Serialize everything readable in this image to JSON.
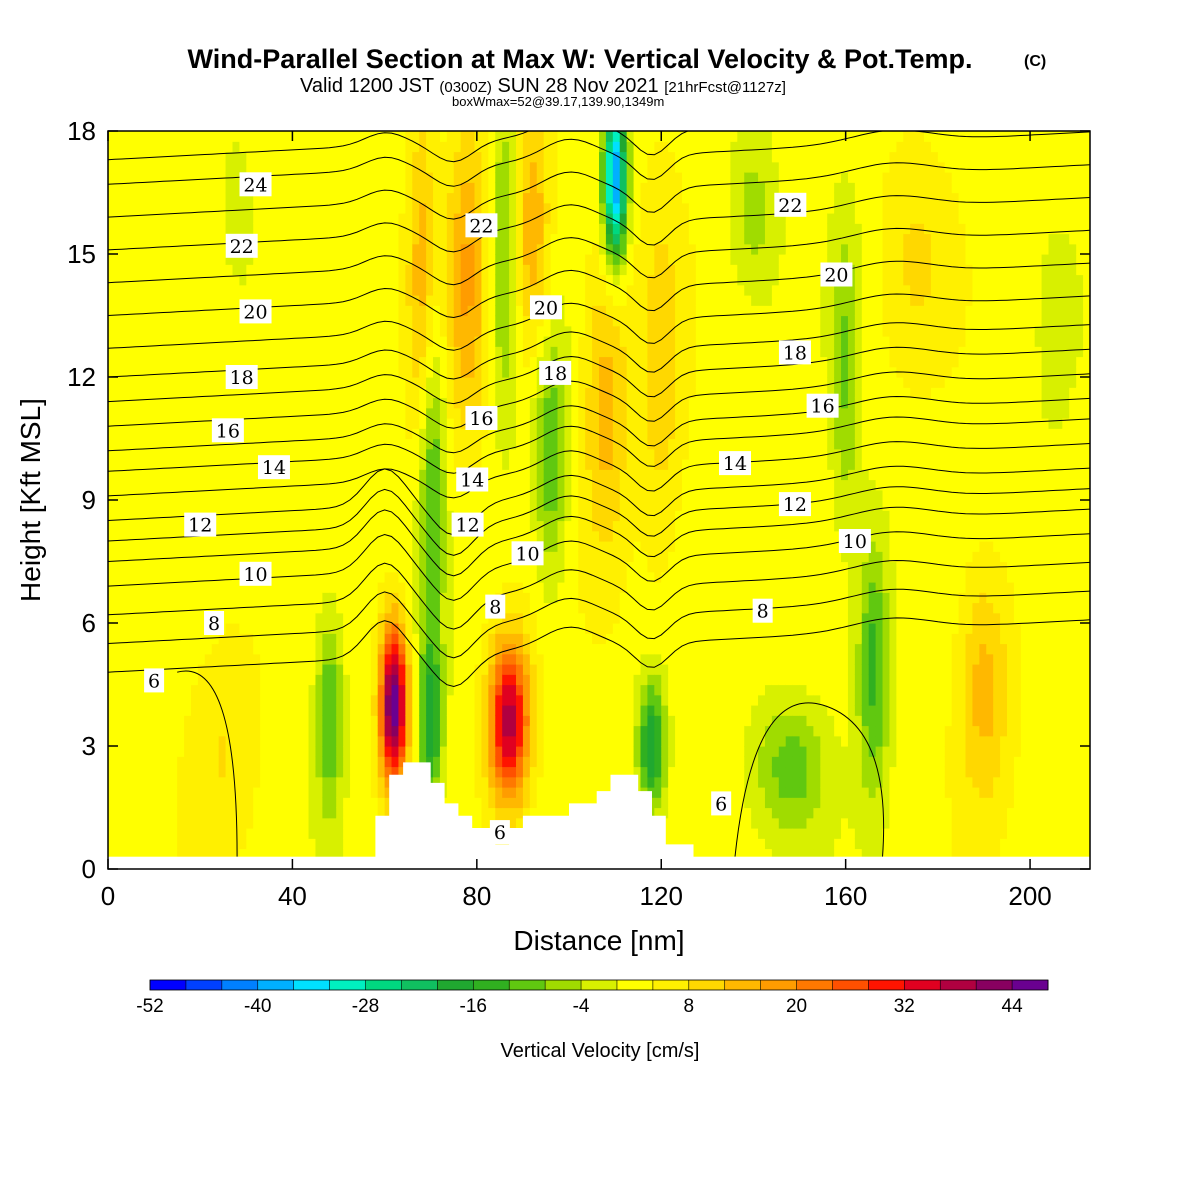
{
  "title": {
    "main": "Wind-Parallel Section at Max W: Vertical Velocity & Pot.Temp.",
    "copyright": "(C)",
    "valid_prefix": "Valid 1200 JST",
    "valid_z": "(0300Z)",
    "valid_date": "SUN 28 Nov 2021",
    "forecast": "[21hrFcst@1127z]",
    "box_info": "boxWmax=52@39.17,139.90,1349m"
  },
  "chart_data": {
    "type": "heatmap",
    "xlabel": "Distance [nm]",
    "ylabel": "Height [Kft MSL]",
    "xlim": [
      0,
      213
    ],
    "ylim": [
      0,
      18
    ],
    "x_ticks": [
      "0",
      "40",
      "80",
      "120",
      "160",
      "200"
    ],
    "y_ticks": [
      "0",
      "3",
      "6",
      "9",
      "12",
      "15",
      "18"
    ],
    "colorbar": {
      "title": "Vertical Velocity [cm/s]",
      "labels": [
        "-52",
        "-40",
        "-28",
        "-16",
        "-4",
        "8",
        "20",
        "32",
        "44"
      ],
      "colors": [
        "#0000ff",
        "#0040ff",
        "#0080ff",
        "#00b0ff",
        "#00e0ff",
        "#00f0c0",
        "#00d880",
        "#10c060",
        "#20a830",
        "#30b020",
        "#60c810",
        "#a0dc00",
        "#d8f000",
        "#ffff00",
        "#fff000",
        "#ffd800",
        "#ffb800",
        "#ff9c00",
        "#ff7800",
        "#ff5000",
        "#ff1400",
        "#e00020",
        "#b00040",
        "#880060",
        "#6a0090"
      ]
    },
    "contour_labels": [
      {
        "x": 32,
        "y": 16.7,
        "text": "24"
      },
      {
        "x": 29,
        "y": 15.2,
        "text": "22"
      },
      {
        "x": 32,
        "y": 13.6,
        "text": "20"
      },
      {
        "x": 29,
        "y": 12.0,
        "text": "18"
      },
      {
        "x": 26,
        "y": 10.7,
        "text": "16"
      },
      {
        "x": 36,
        "y": 9.8,
        "text": "14"
      },
      {
        "x": 20,
        "y": 8.4,
        "text": "12"
      },
      {
        "x": 32,
        "y": 7.2,
        "text": "10"
      },
      {
        "x": 23,
        "y": 6.0,
        "text": "8"
      },
      {
        "x": 10,
        "y": 4.6,
        "text": "6"
      },
      {
        "x": 81,
        "y": 15.7,
        "text": "22"
      },
      {
        "x": 95,
        "y": 13.7,
        "text": "20"
      },
      {
        "x": 97,
        "y": 12.1,
        "text": "18"
      },
      {
        "x": 81,
        "y": 11.0,
        "text": "16"
      },
      {
        "x": 79,
        "y": 9.5,
        "text": "14"
      },
      {
        "x": 78,
        "y": 8.4,
        "text": "12"
      },
      {
        "x": 91,
        "y": 7.7,
        "text": "10"
      },
      {
        "x": 84,
        "y": 6.4,
        "text": "8"
      },
      {
        "x": 85,
        "y": 0.9,
        "text": "6"
      },
      {
        "x": 148,
        "y": 16.2,
        "text": "22"
      },
      {
        "x": 158,
        "y": 14.5,
        "text": "20"
      },
      {
        "x": 149,
        "y": 12.6,
        "text": "18"
      },
      {
        "x": 155,
        "y": 11.3,
        "text": "16"
      },
      {
        "x": 136,
        "y": 9.9,
        "text": "14"
      },
      {
        "x": 149,
        "y": 8.9,
        "text": "12"
      },
      {
        "x": 162,
        "y": 8.0,
        "text": "10"
      },
      {
        "x": 142,
        "y": 6.3,
        "text": "8"
      },
      {
        "x": 133,
        "y": 1.6,
        "text": "6"
      }
    ],
    "terrain": [
      [
        58,
        0.3
      ],
      [
        58,
        1.3
      ],
      [
        61,
        1.3
      ],
      [
        61,
        2.3
      ],
      [
        64,
        2.3
      ],
      [
        64,
        2.6
      ],
      [
        70,
        2.6
      ],
      [
        70,
        2.1
      ],
      [
        73,
        2.1
      ],
      [
        73,
        1.6
      ],
      [
        76,
        1.6
      ],
      [
        76,
        1.3
      ],
      [
        79,
        1.3
      ],
      [
        79,
        1.0
      ],
      [
        84,
        1.0
      ],
      [
        84,
        0.6
      ],
      [
        87,
        0.6
      ],
      [
        87,
        1.0
      ],
      [
        90,
        1.0
      ],
      [
        90,
        1.3
      ],
      [
        100,
        1.3
      ],
      [
        100,
        1.6
      ],
      [
        106,
        1.6
      ],
      [
        106,
        1.9
      ],
      [
        109,
        1.9
      ],
      [
        109,
        2.3
      ],
      [
        115,
        2.3
      ],
      [
        115,
        1.9
      ],
      [
        118,
        1.9
      ],
      [
        118,
        1.3
      ],
      [
        121,
        1.3
      ],
      [
        121,
        0.6
      ],
      [
        127,
        0.6
      ],
      [
        127,
        0.3
      ]
    ],
    "theta_lines": [
      {
        "level": 6,
        "base": 4.8
      },
      {
        "level": 7,
        "base": 5.5
      },
      {
        "level": 8,
        "base": 6.2
      },
      {
        "level": 9,
        "base": 6.9
      },
      {
        "level": 10,
        "base": 7.5
      },
      {
        "level": 11,
        "base": 8.0
      },
      {
        "level": 12,
        "base": 8.5
      },
      {
        "level": 13,
        "base": 9.1
      },
      {
        "level": 14,
        "base": 9.7
      },
      {
        "level": 15,
        "base": 10.2
      },
      {
        "level": 16,
        "base": 10.8
      },
      {
        "level": 17,
        "base": 11.4
      },
      {
        "level": 18,
        "base": 12.0
      },
      {
        "level": 19,
        "base": 12.7
      },
      {
        "level": 20,
        "base": 13.5
      },
      {
        "level": 21,
        "base": 14.3
      },
      {
        "level": 22,
        "base": 15.1
      },
      {
        "level": 23,
        "base": 15.9
      },
      {
        "level": 24,
        "base": 16.7
      },
      {
        "level": 25,
        "base": 17.3
      }
    ],
    "w_features": [
      {
        "x": 62,
        "y": 4.0,
        "sx": 3.0,
        "sy": 2.0,
        "w": 46
      },
      {
        "x": 87,
        "y": 3.6,
        "sx": 4.5,
        "sy": 2.0,
        "w": 36
      },
      {
        "x": 70,
        "y": 3.5,
        "sx": 2.6,
        "sy": 2.0,
        "w": -20
      },
      {
        "x": 70,
        "y": 9.5,
        "sx": 3.0,
        "sy": 4.0,
        "w": -16
      },
      {
        "x": 78,
        "y": 14.5,
        "sx": 4.5,
        "sy": 4.0,
        "w": 14
      },
      {
        "x": 68,
        "y": 14.0,
        "sx": 3.0,
        "sy": 5.0,
        "w": 12
      },
      {
        "x": 86,
        "y": 15.0,
        "sx": 3.0,
        "sy": 4.0,
        "w": -12
      },
      {
        "x": 96,
        "y": 10.0,
        "sx": 3.5,
        "sy": 3.0,
        "w": -14
      },
      {
        "x": 92,
        "y": 15.5,
        "sx": 4.0,
        "sy": 3.0,
        "w": 14
      },
      {
        "x": 110,
        "y": 16.8,
        "sx": 2.5,
        "sy": 2.0,
        "w": -44
      },
      {
        "x": 108,
        "y": 11.5,
        "sx": 5.0,
        "sy": 4.0,
        "w": 12
      },
      {
        "x": 118,
        "y": 3.0,
        "sx": 3.0,
        "sy": 1.6,
        "w": -22
      },
      {
        "x": 120,
        "y": 12.0,
        "sx": 5.0,
        "sy": 5.0,
        "w": 8
      },
      {
        "x": 140,
        "y": 16.0,
        "sx": 5.0,
        "sy": 2.0,
        "w": -8
      },
      {
        "x": 148,
        "y": 2.5,
        "sx": 8.0,
        "sy": 1.6,
        "w": -12
      },
      {
        "x": 166,
        "y": 5.0,
        "sx": 3.5,
        "sy": 3.2,
        "w": -16
      },
      {
        "x": 160,
        "y": 12.0,
        "sx": 3.0,
        "sy": 4.0,
        "w": -10
      },
      {
        "x": 48,
        "y": 3.8,
        "sx": 3.0,
        "sy": 2.5,
        "w": -14
      },
      {
        "x": 190,
        "y": 4.5,
        "sx": 6.0,
        "sy": 3.0,
        "w": 12
      },
      {
        "x": 25,
        "y": 3.0,
        "sx": 8.0,
        "sy": 3.0,
        "w": 6
      },
      {
        "x": 28,
        "y": 16.0,
        "sx": 4.0,
        "sy": 2.0,
        "w": -4
      },
      {
        "x": 175,
        "y": 15.0,
        "sx": 8.0,
        "sy": 3.0,
        "w": 6
      },
      {
        "x": 205,
        "y": 12.0,
        "sx": 6.0,
        "sy": 5.0,
        "w": -2
      }
    ]
  }
}
